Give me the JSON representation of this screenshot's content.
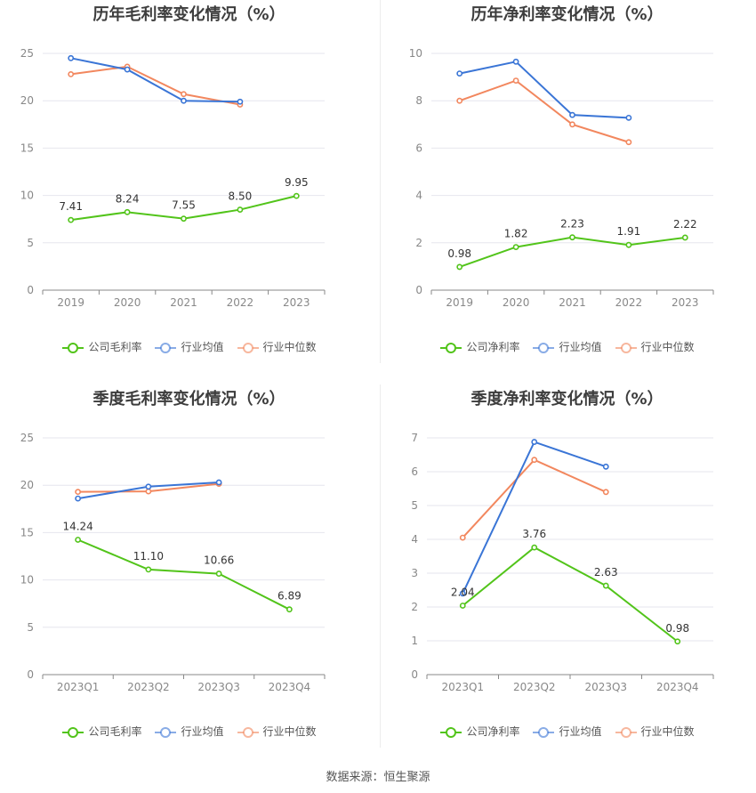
{
  "footer": {
    "source": "数据来源：恒生聚源"
  },
  "chart_data": [
    {
      "type": "line",
      "title": "历年毛利率变化情况（%）",
      "categories": [
        "2019",
        "2020",
        "2021",
        "2022",
        "2023"
      ],
      "ylim": [
        0,
        25
      ],
      "yticks": [
        0,
        5,
        10,
        15,
        20,
        25
      ],
      "grid": true,
      "legend": "bottom",
      "series": [
        {
          "name": "公司毛利率",
          "color": "#52c41a",
          "values": [
            7.41,
            8.24,
            7.55,
            8.5,
            9.95
          ],
          "labels": [
            "7.41",
            "8.24",
            "7.55",
            "8.50",
            "9.95"
          ]
        },
        {
          "name": "行业均值",
          "color": "#3a75d6",
          "values": [
            24.5,
            23.3,
            20.0,
            19.9,
            null
          ]
        },
        {
          "name": "行业中位数",
          "color": "#f2875e",
          "values": [
            22.8,
            23.6,
            20.7,
            19.6,
            null
          ]
        }
      ]
    },
    {
      "type": "line",
      "title": "历年净利率变化情况（%）",
      "categories": [
        "2019",
        "2020",
        "2021",
        "2022",
        "2023"
      ],
      "ylim": [
        0,
        10
      ],
      "yticks": [
        0,
        2,
        4,
        6,
        8,
        10
      ],
      "grid": true,
      "legend": "bottom",
      "series": [
        {
          "name": "公司净利率",
          "color": "#52c41a",
          "values": [
            0.98,
            1.82,
            2.23,
            1.91,
            2.22
          ],
          "labels": [
            "0.98",
            "1.82",
            "2.23",
            "1.91",
            "2.22"
          ]
        },
        {
          "name": "行业均值",
          "color": "#3a75d6",
          "values": [
            9.15,
            9.65,
            7.4,
            7.28,
            null
          ]
        },
        {
          "name": "行业中位数",
          "color": "#f2875e",
          "values": [
            8.0,
            8.85,
            7.0,
            6.25,
            null
          ]
        }
      ]
    },
    {
      "type": "line",
      "title": "季度毛利率变化情况（%）",
      "categories": [
        "2023Q1",
        "2023Q2",
        "2023Q3",
        "2023Q4"
      ],
      "ylim": [
        0,
        25
      ],
      "yticks": [
        0,
        5,
        10,
        15,
        20,
        25
      ],
      "grid": true,
      "legend": "bottom",
      "series": [
        {
          "name": "公司毛利率",
          "color": "#52c41a",
          "values": [
            14.24,
            11.1,
            10.66,
            6.89
          ],
          "labels": [
            "14.24",
            "11.10",
            "10.66",
            "6.89"
          ]
        },
        {
          "name": "行业均值",
          "color": "#3a75d6",
          "values": [
            18.6,
            19.85,
            20.3,
            null
          ]
        },
        {
          "name": "行业中位数",
          "color": "#f2875e",
          "values": [
            19.3,
            19.35,
            20.15,
            null
          ]
        }
      ]
    },
    {
      "type": "line",
      "title": "季度净利率变化情况（%）",
      "categories": [
        "2023Q1",
        "2023Q2",
        "2023Q3",
        "2023Q4"
      ],
      "ylim": [
        0,
        7
      ],
      "yticks": [
        0,
        1,
        2,
        3,
        4,
        5,
        6,
        7
      ],
      "grid": true,
      "legend": "bottom",
      "series": [
        {
          "name": "公司净利率",
          "color": "#52c41a",
          "values": [
            2.04,
            3.76,
            2.63,
            0.98
          ],
          "labels": [
            "2.04",
            "3.76",
            "2.63",
            "0.98"
          ]
        },
        {
          "name": "行业均值",
          "color": "#3a75d6",
          "values": [
            2.4,
            6.88,
            6.15,
            null
          ]
        },
        {
          "name": "行业中位数",
          "color": "#f2875e",
          "values": [
            4.05,
            6.35,
            5.4,
            null
          ]
        }
      ]
    }
  ]
}
